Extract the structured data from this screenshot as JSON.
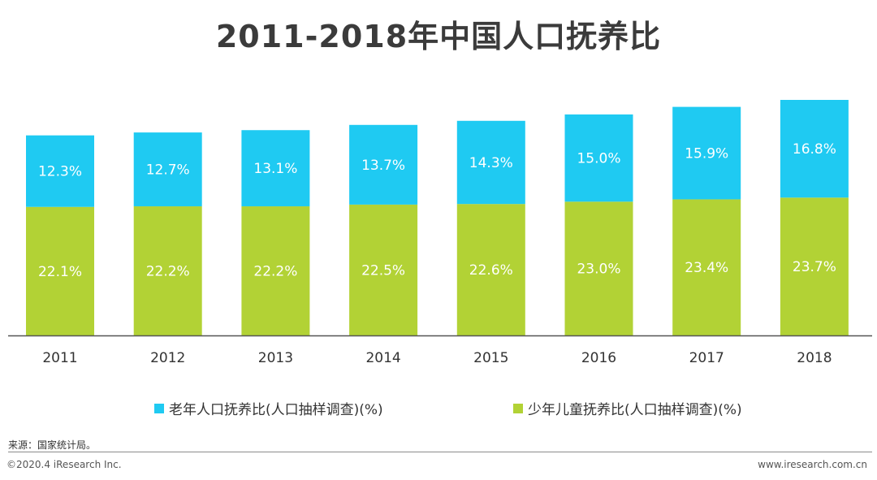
{
  "chart_data": {
    "type": "bar",
    "stacked": true,
    "title": "2011-2018年中国人口抚养比",
    "categories": [
      "2011",
      "2012",
      "2013",
      "2014",
      "2015",
      "2016",
      "2017",
      "2018"
    ],
    "series": [
      {
        "name": "少年儿童抚养比(人口抽样调查)(%)",
        "values": [
          22.1,
          22.2,
          22.2,
          22.5,
          22.6,
          23.0,
          23.4,
          23.7
        ],
        "labels": [
          "22.1%",
          "22.2%",
          "22.2%",
          "22.5%",
          "22.6%",
          "23.0%",
          "23.4%",
          "23.7%"
        ],
        "color": "#b2d235"
      },
      {
        "name": "老年人口抚养比(人口抽样调查)(%)",
        "values": [
          12.3,
          12.7,
          13.1,
          13.7,
          14.3,
          15.0,
          15.9,
          16.8
        ],
        "labels": [
          "12.3%",
          "12.7%",
          "13.1%",
          "13.7%",
          "14.3%",
          "15.0%",
          "15.9%",
          "16.8%"
        ],
        "color": "#1fcaf2"
      }
    ],
    "legend_position": "bottom",
    "grid": false,
    "ylim": [
      0,
      40.5
    ]
  },
  "source": "来源：国家统计局。",
  "copyright": "©2020.4 iResearch Inc.",
  "website": "www.iresearch.com.cn"
}
